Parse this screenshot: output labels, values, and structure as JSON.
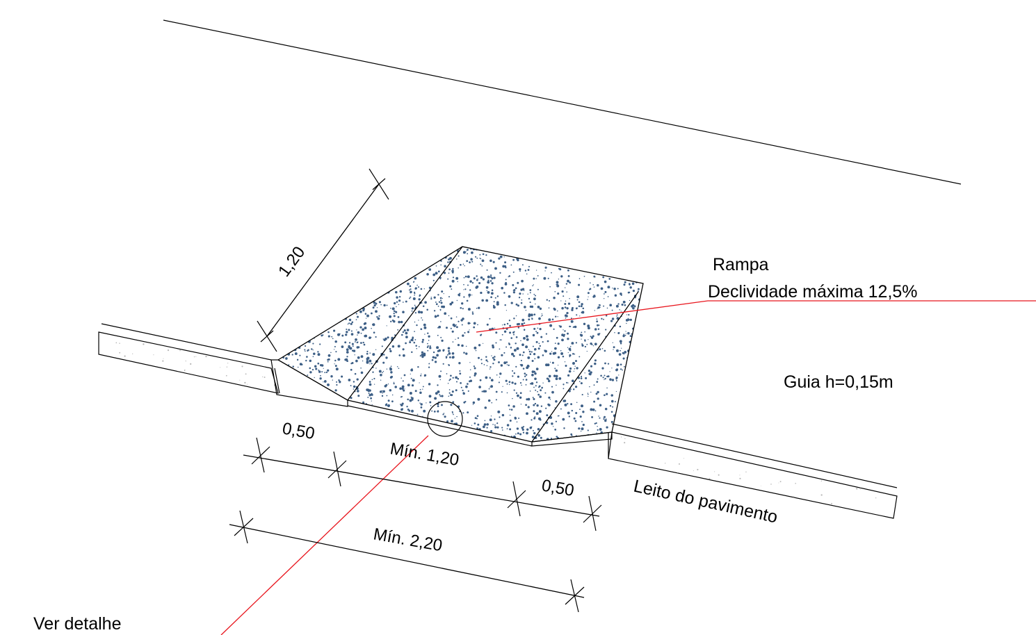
{
  "drawing": {
    "annotations": {
      "ramp_title": "Rampa",
      "ramp_slope": "Declividade máxima 12,5%",
      "curb": "Guia h=0,15m",
      "pavement": "Leito do pavimento",
      "see_detail": "Ver detalhe"
    },
    "dimensions": {
      "ramp_depth": "1,20",
      "left_flare": "0,50",
      "ramp_width": "Mín. 1,20",
      "right_flare": "0,50",
      "total_width": "Mín. 2,20"
    },
    "colors": {
      "line": "#000000",
      "leader": "#e8141c",
      "speckle": "#3d5f86",
      "curb_speckle": "#b8b8b8"
    }
  }
}
